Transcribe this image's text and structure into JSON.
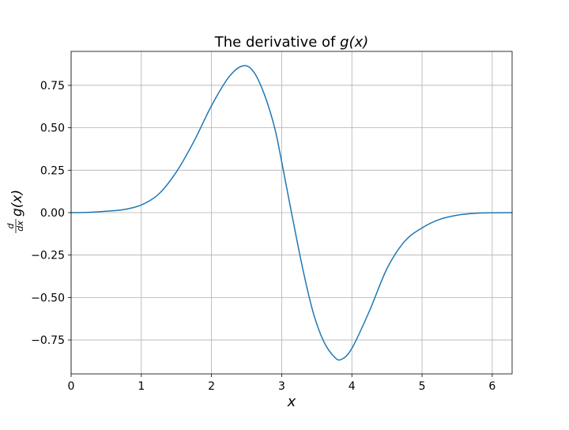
{
  "chart_data": {
    "type": "line",
    "title": "The derivative of g(x)",
    "title_prefix": "The derivative of",
    "title_math": "g(x)",
    "xlabel": "x",
    "ylabel": "d/dx g(x)",
    "ylabel_parts": {
      "numerator": "d",
      "denominator": "dx",
      "func": "g(x)"
    },
    "xlim": [
      0,
      6.283185
    ],
    "ylim": [
      -0.95,
      0.95
    ],
    "xticks": [
      0,
      1,
      2,
      3,
      4,
      5,
      6
    ],
    "xtick_labels": [
      "0",
      "1",
      "2",
      "3",
      "4",
      "5",
      "6"
    ],
    "yticks": [
      -0.75,
      -0.5,
      -0.25,
      0,
      0.25,
      0.5,
      0.75
    ],
    "ytick_labels": [
      "−0.75",
      "−0.50",
      "−0.25",
      "0.00",
      "0.25",
      "0.50",
      "0.75"
    ],
    "grid": true,
    "series": [
      {
        "color": "#1f77b4",
        "x": [
          0,
          0.25,
          0.5,
          0.75,
          1.0,
          1.25,
          1.5,
          1.75,
          2.0,
          2.25,
          2.45,
          2.6,
          2.75,
          2.9,
          3.0,
          3.14,
          3.3,
          3.45,
          3.6,
          3.75,
          3.85,
          4.0,
          4.25,
          4.5,
          4.75,
          5.0,
          5.25,
          5.5,
          5.75,
          6.0,
          6.283
        ],
        "y": [
          0,
          0.002,
          0.008,
          0.018,
          0.045,
          0.11,
          0.24,
          0.42,
          0.63,
          0.8,
          0.865,
          0.83,
          0.7,
          0.5,
          0.3,
          0.0,
          -0.33,
          -0.59,
          -0.76,
          -0.85,
          -0.865,
          -0.8,
          -0.58,
          -0.33,
          -0.17,
          -0.09,
          -0.04,
          -0.015,
          -0.004,
          -0.001,
          0
        ]
      }
    ]
  }
}
